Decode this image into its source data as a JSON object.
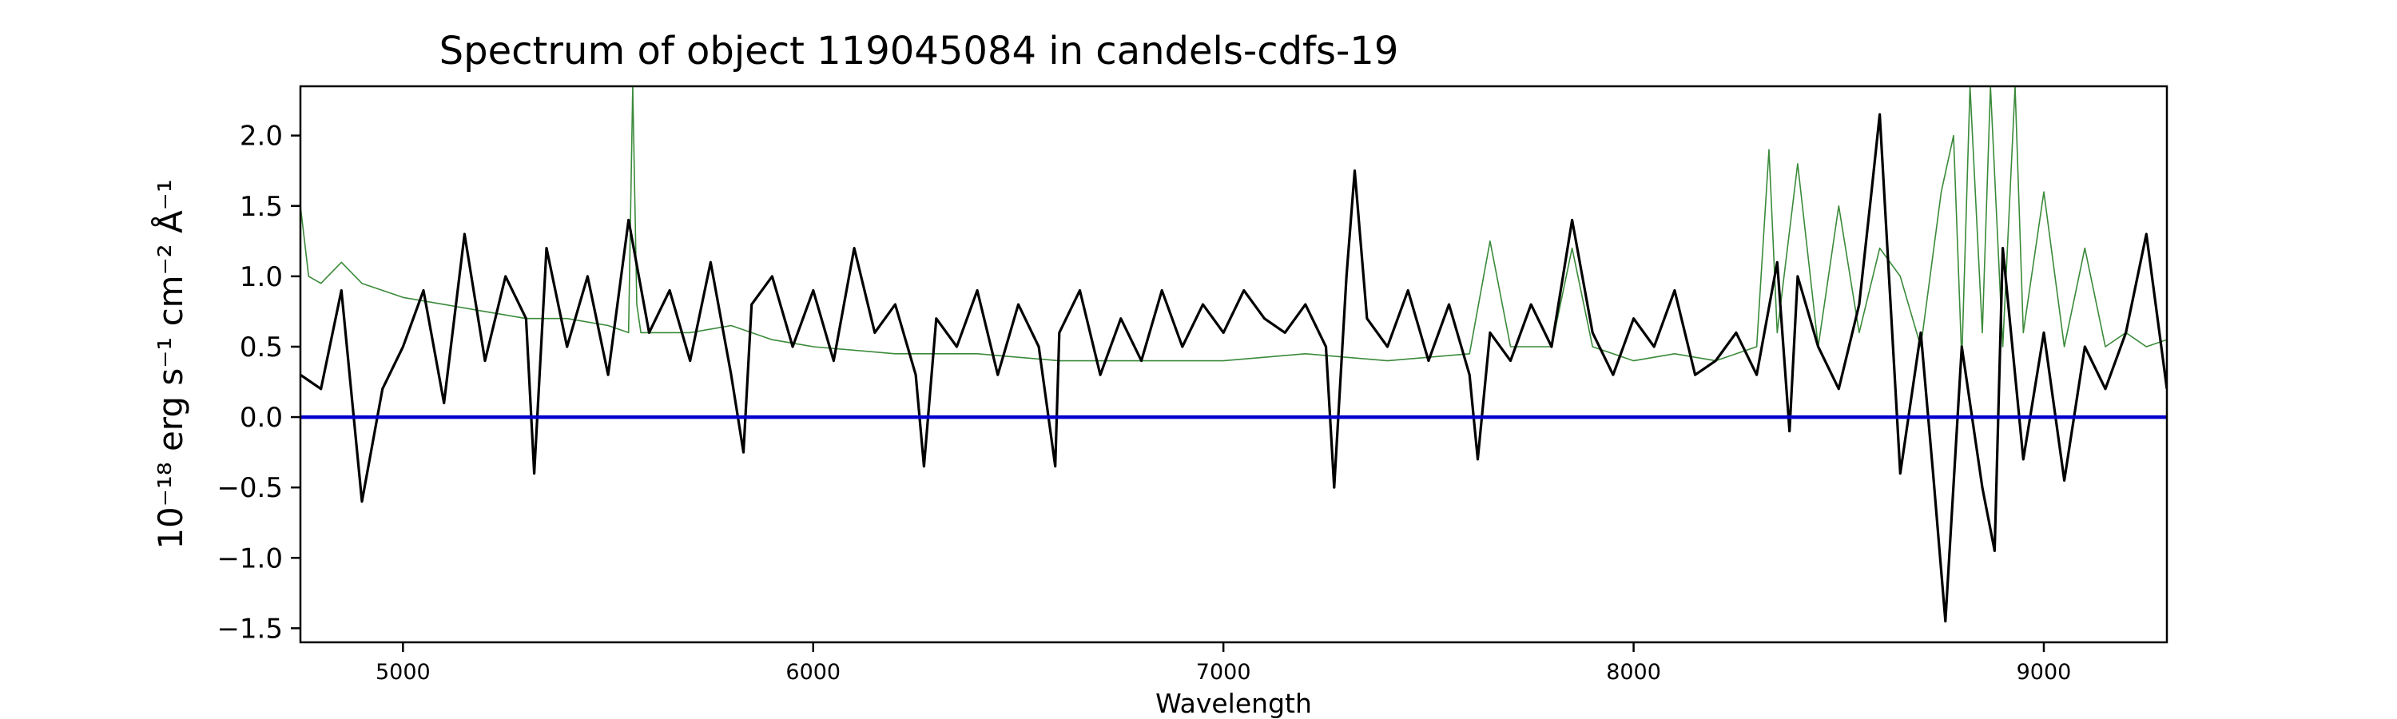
{
  "chart_data": {
    "type": "line",
    "title": "Spectrum of object 119045084 in candels-cdfs-19",
    "xlabel": "Wavelength",
    "ylabel": "10⁻¹⁸ erg s⁻¹ cm⁻² Å⁻¹",
    "xlim": [
      4750,
      9300
    ],
    "ylim": [
      -1.6,
      2.35
    ],
    "xticks": [
      5000,
      6000,
      7000,
      8000,
      9000
    ],
    "yticks": [
      -1.5,
      -1.0,
      -0.5,
      0.0,
      0.5,
      1.0,
      1.5,
      2.0
    ],
    "legend": "none",
    "grid": false,
    "colors": {
      "flux": "#000000",
      "model": "#3a8a3a",
      "zero": "#0000cc"
    },
    "series": [
      {
        "role": "flux",
        "x": [
          4750,
          4800,
          4850,
          4900,
          4950,
          5000,
          5050,
          5100,
          5150,
          5200,
          5250,
          5300,
          5320,
          5350,
          5400,
          5450,
          5500,
          5550,
          5600,
          5650,
          5700,
          5750,
          5800,
          5830,
          5850,
          5900,
          5950,
          6000,
          6050,
          6100,
          6150,
          6200,
          6250,
          6270,
          6300,
          6350,
          6400,
          6450,
          6500,
          6550,
          6590,
          6600,
          6650,
          6700,
          6750,
          6800,
          6850,
          6900,
          6950,
          7000,
          7050,
          7100,
          7150,
          7200,
          7250,
          7270,
          7300,
          7320,
          7350,
          7400,
          7450,
          7500,
          7550,
          7600,
          7620,
          7650,
          7700,
          7750,
          7800,
          7850,
          7900,
          7950,
          8000,
          8050,
          8100,
          8150,
          8200,
          8250,
          8300,
          8350,
          8380,
          8400,
          8450,
          8500,
          8550,
          8580,
          8600,
          8650,
          8700,
          8730,
          8760,
          8800,
          8850,
          8880,
          8900,
          8950,
          9000,
          9050,
          9100,
          9150,
          9200,
          9250,
          9300
        ],
        "y": [
          0.3,
          0.2,
          0.9,
          -0.6,
          0.2,
          0.5,
          0.9,
          0.1,
          1.3,
          0.4,
          1.0,
          0.7,
          -0.4,
          1.2,
          0.5,
          1.0,
          0.3,
          1.4,
          0.6,
          0.9,
          0.4,
          1.1,
          0.3,
          -0.25,
          0.8,
          1.0,
          0.5,
          0.9,
          0.4,
          1.2,
          0.6,
          0.8,
          0.3,
          -0.35,
          0.7,
          0.5,
          0.9,
          0.3,
          0.8,
          0.5,
          -0.35,
          0.6,
          0.9,
          0.3,
          0.7,
          0.4,
          0.9,
          0.5,
          0.8,
          0.6,
          0.9,
          0.7,
          0.6,
          0.8,
          0.5,
          -0.5,
          1.0,
          1.75,
          0.7,
          0.5,
          0.9,
          0.4,
          0.8,
          0.3,
          -0.3,
          0.6,
          0.4,
          0.8,
          0.5,
          1.4,
          0.6,
          0.3,
          0.7,
          0.5,
          0.9,
          0.3,
          0.4,
          0.6,
          0.3,
          1.1,
          -0.1,
          1.0,
          0.5,
          0.2,
          0.8,
          1.6,
          2.15,
          -0.4,
          0.6,
          -0.4,
          -1.45,
          0.5,
          -0.5,
          -0.95,
          1.2,
          -0.3,
          0.6,
          -0.45,
          0.5,
          0.2,
          0.6,
          1.3,
          0.2
        ]
      },
      {
        "role": "model",
        "x": [
          4750,
          4770,
          4800,
          4850,
          4900,
          4950,
          5000,
          5100,
          5200,
          5300,
          5400,
          5500,
          5550,
          5560,
          5570,
          5580,
          5600,
          5700,
          5800,
          5900,
          6000,
          6200,
          6400,
          6600,
          6800,
          7000,
          7200,
          7400,
          7600,
          7650,
          7700,
          7800,
          7850,
          7900,
          8000,
          8100,
          8200,
          8300,
          8330,
          8350,
          8400,
          8450,
          8500,
          8550,
          8600,
          8650,
          8700,
          8750,
          8780,
          8800,
          8820,
          8850,
          8870,
          8900,
          8930,
          8950,
          9000,
          9050,
          9100,
          9150,
          9200,
          9250,
          9300
        ],
        "y": [
          1.5,
          1.0,
          0.95,
          1.1,
          0.95,
          0.9,
          0.85,
          0.8,
          0.75,
          0.7,
          0.7,
          0.65,
          0.6,
          2.35,
          0.8,
          0.6,
          0.6,
          0.6,
          0.65,
          0.55,
          0.5,
          0.45,
          0.45,
          0.4,
          0.4,
          0.4,
          0.45,
          0.4,
          0.45,
          1.25,
          0.5,
          0.5,
          1.2,
          0.5,
          0.4,
          0.45,
          0.4,
          0.5,
          1.9,
          0.6,
          1.8,
          0.5,
          1.5,
          0.6,
          1.2,
          1.0,
          0.5,
          1.6,
          2.0,
          0.4,
          2.35,
          0.6,
          2.35,
          0.5,
          2.35,
          0.6,
          1.6,
          0.5,
          1.2,
          0.5,
          0.6,
          0.5,
          0.55
        ]
      },
      {
        "role": "zero",
        "x": [
          4750,
          9300
        ],
        "y": [
          0.0,
          0.0
        ]
      }
    ]
  }
}
